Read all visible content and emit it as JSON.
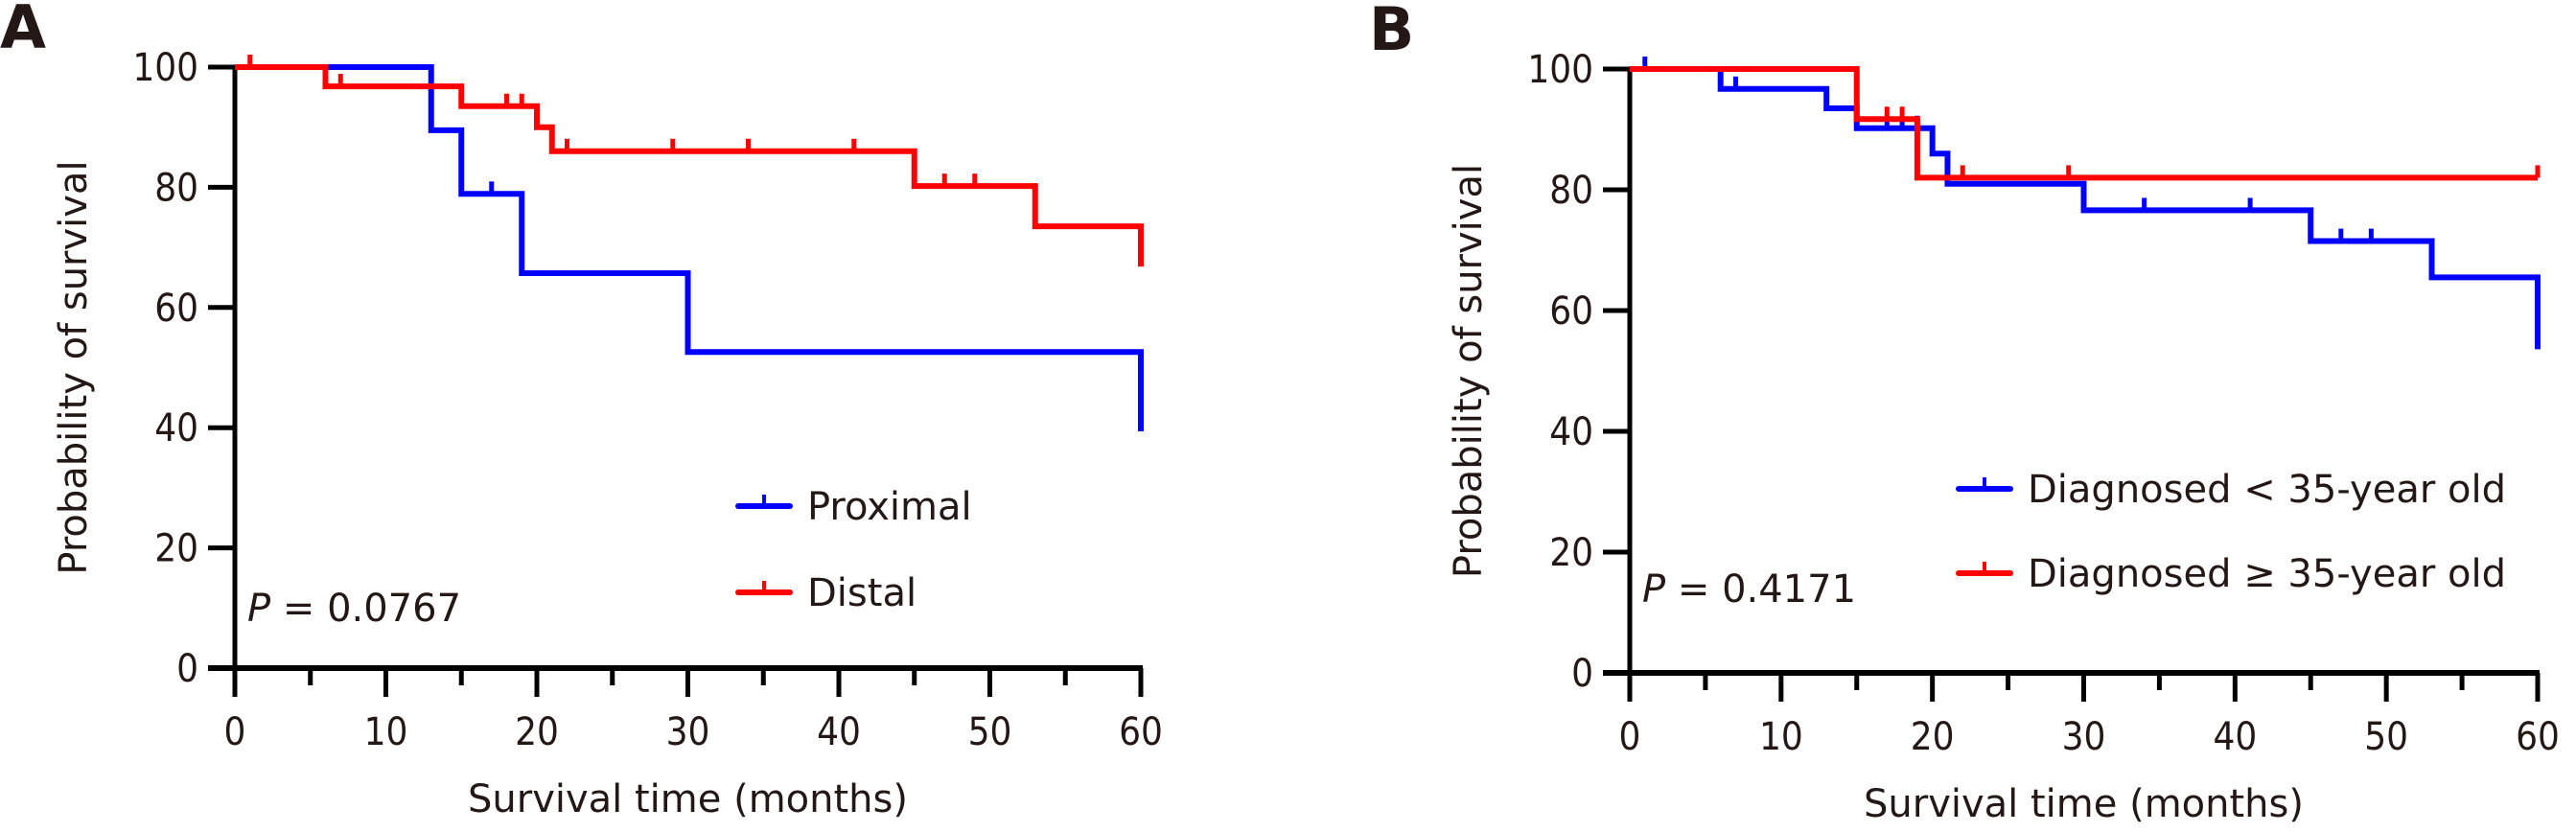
{
  "chart_data": [
    {
      "type": "line",
      "subtype": "kaplan-meier",
      "panel_label": "A",
      "title": "",
      "xlabel": "Survival time (months)",
      "ylabel": "Probability of survival",
      "xlim": [
        0,
        60
      ],
      "ylim": [
        0,
        100
      ],
      "x_ticks": [
        0,
        10,
        20,
        30,
        40,
        50,
        60
      ],
      "x_minor_ticks": [
        5,
        15,
        25,
        35,
        45,
        55
      ],
      "y_ticks": [
        0,
        20,
        40,
        60,
        80,
        100
      ],
      "grid": false,
      "legend_position": "bottom-right",
      "annotation": {
        "prefix": "P",
        "text": " = 0.0767"
      },
      "series": [
        {
          "name": "Proximal",
          "color": "#0000ff",
          "steps": [
            [
              0,
              100
            ],
            [
              13,
              89.5
            ],
            [
              15,
              78.9
            ],
            [
              19,
              65.7
            ],
            [
              30,
              52.6
            ],
            [
              60,
              39.4
            ]
          ],
          "censored": [
            [
              17,
              78.9
            ]
          ]
        },
        {
          "name": "Distal",
          "color": "#ff0000",
          "steps": [
            [
              0,
              100
            ],
            [
              6,
              96.8
            ],
            [
              15,
              93.5
            ],
            [
              20,
              90.0
            ],
            [
              21,
              86.0
            ],
            [
              45,
              80.2
            ],
            [
              53,
              73.5
            ],
            [
              60,
              66.8
            ]
          ],
          "censored": [
            [
              1,
              100
            ],
            [
              7,
              96.8
            ],
            [
              18,
              93.5
            ],
            [
              19,
              93.5
            ],
            [
              22,
              86.0
            ],
            [
              29,
              86.0
            ],
            [
              34,
              86.0
            ],
            [
              41,
              86.0
            ],
            [
              47,
              80.2
            ],
            [
              49,
              80.2
            ]
          ]
        }
      ]
    },
    {
      "type": "line",
      "subtype": "kaplan-meier",
      "panel_label": "B",
      "title": "",
      "xlabel": "Survival time (months)",
      "ylabel": "Probability of survival",
      "xlim": [
        0,
        60
      ],
      "ylim": [
        0,
        100
      ],
      "x_ticks": [
        0,
        10,
        20,
        30,
        40,
        50,
        60
      ],
      "x_minor_ticks": [
        5,
        15,
        25,
        35,
        45,
        55
      ],
      "y_ticks": [
        0,
        20,
        40,
        60,
        80,
        100
      ],
      "grid": false,
      "legend_position": "bottom-right",
      "annotation": {
        "prefix": "P",
        "text": " = 0.4171"
      },
      "series": [
        {
          "name": "Diagnosed < 35-year old",
          "color": "#0000ff",
          "steps": [
            [
              0,
              100
            ],
            [
              6,
              96.7
            ],
            [
              13,
              93.5
            ],
            [
              15,
              90.2
            ],
            [
              20,
              86.0
            ],
            [
              21,
              81.0
            ],
            [
              30,
              76.6
            ],
            [
              45,
              71.5
            ],
            [
              53,
              65.5
            ],
            [
              60,
              53.6
            ]
          ],
          "censored": [
            [
              1,
              100
            ],
            [
              7,
              96.7
            ],
            [
              17,
              90.2
            ],
            [
              18,
              90.2
            ],
            [
              19,
              90.2
            ],
            [
              34,
              76.6
            ],
            [
              41,
              76.6
            ],
            [
              47,
              71.5
            ],
            [
              49,
              71.5
            ]
          ]
        },
        {
          "name": "Diagnosed ≥ 35-year old",
          "color": "#ff0000",
          "steps": [
            [
              0,
              100
            ],
            [
              15,
              91.7
            ],
            [
              19,
              82.0
            ],
            [
              60,
              82.0
            ]
          ],
          "censored": [
            [
              17,
              91.7
            ],
            [
              18,
              91.7
            ],
            [
              22,
              82.0
            ],
            [
              29,
              82.0
            ],
            [
              60,
              82.0
            ]
          ]
        }
      ]
    }
  ]
}
